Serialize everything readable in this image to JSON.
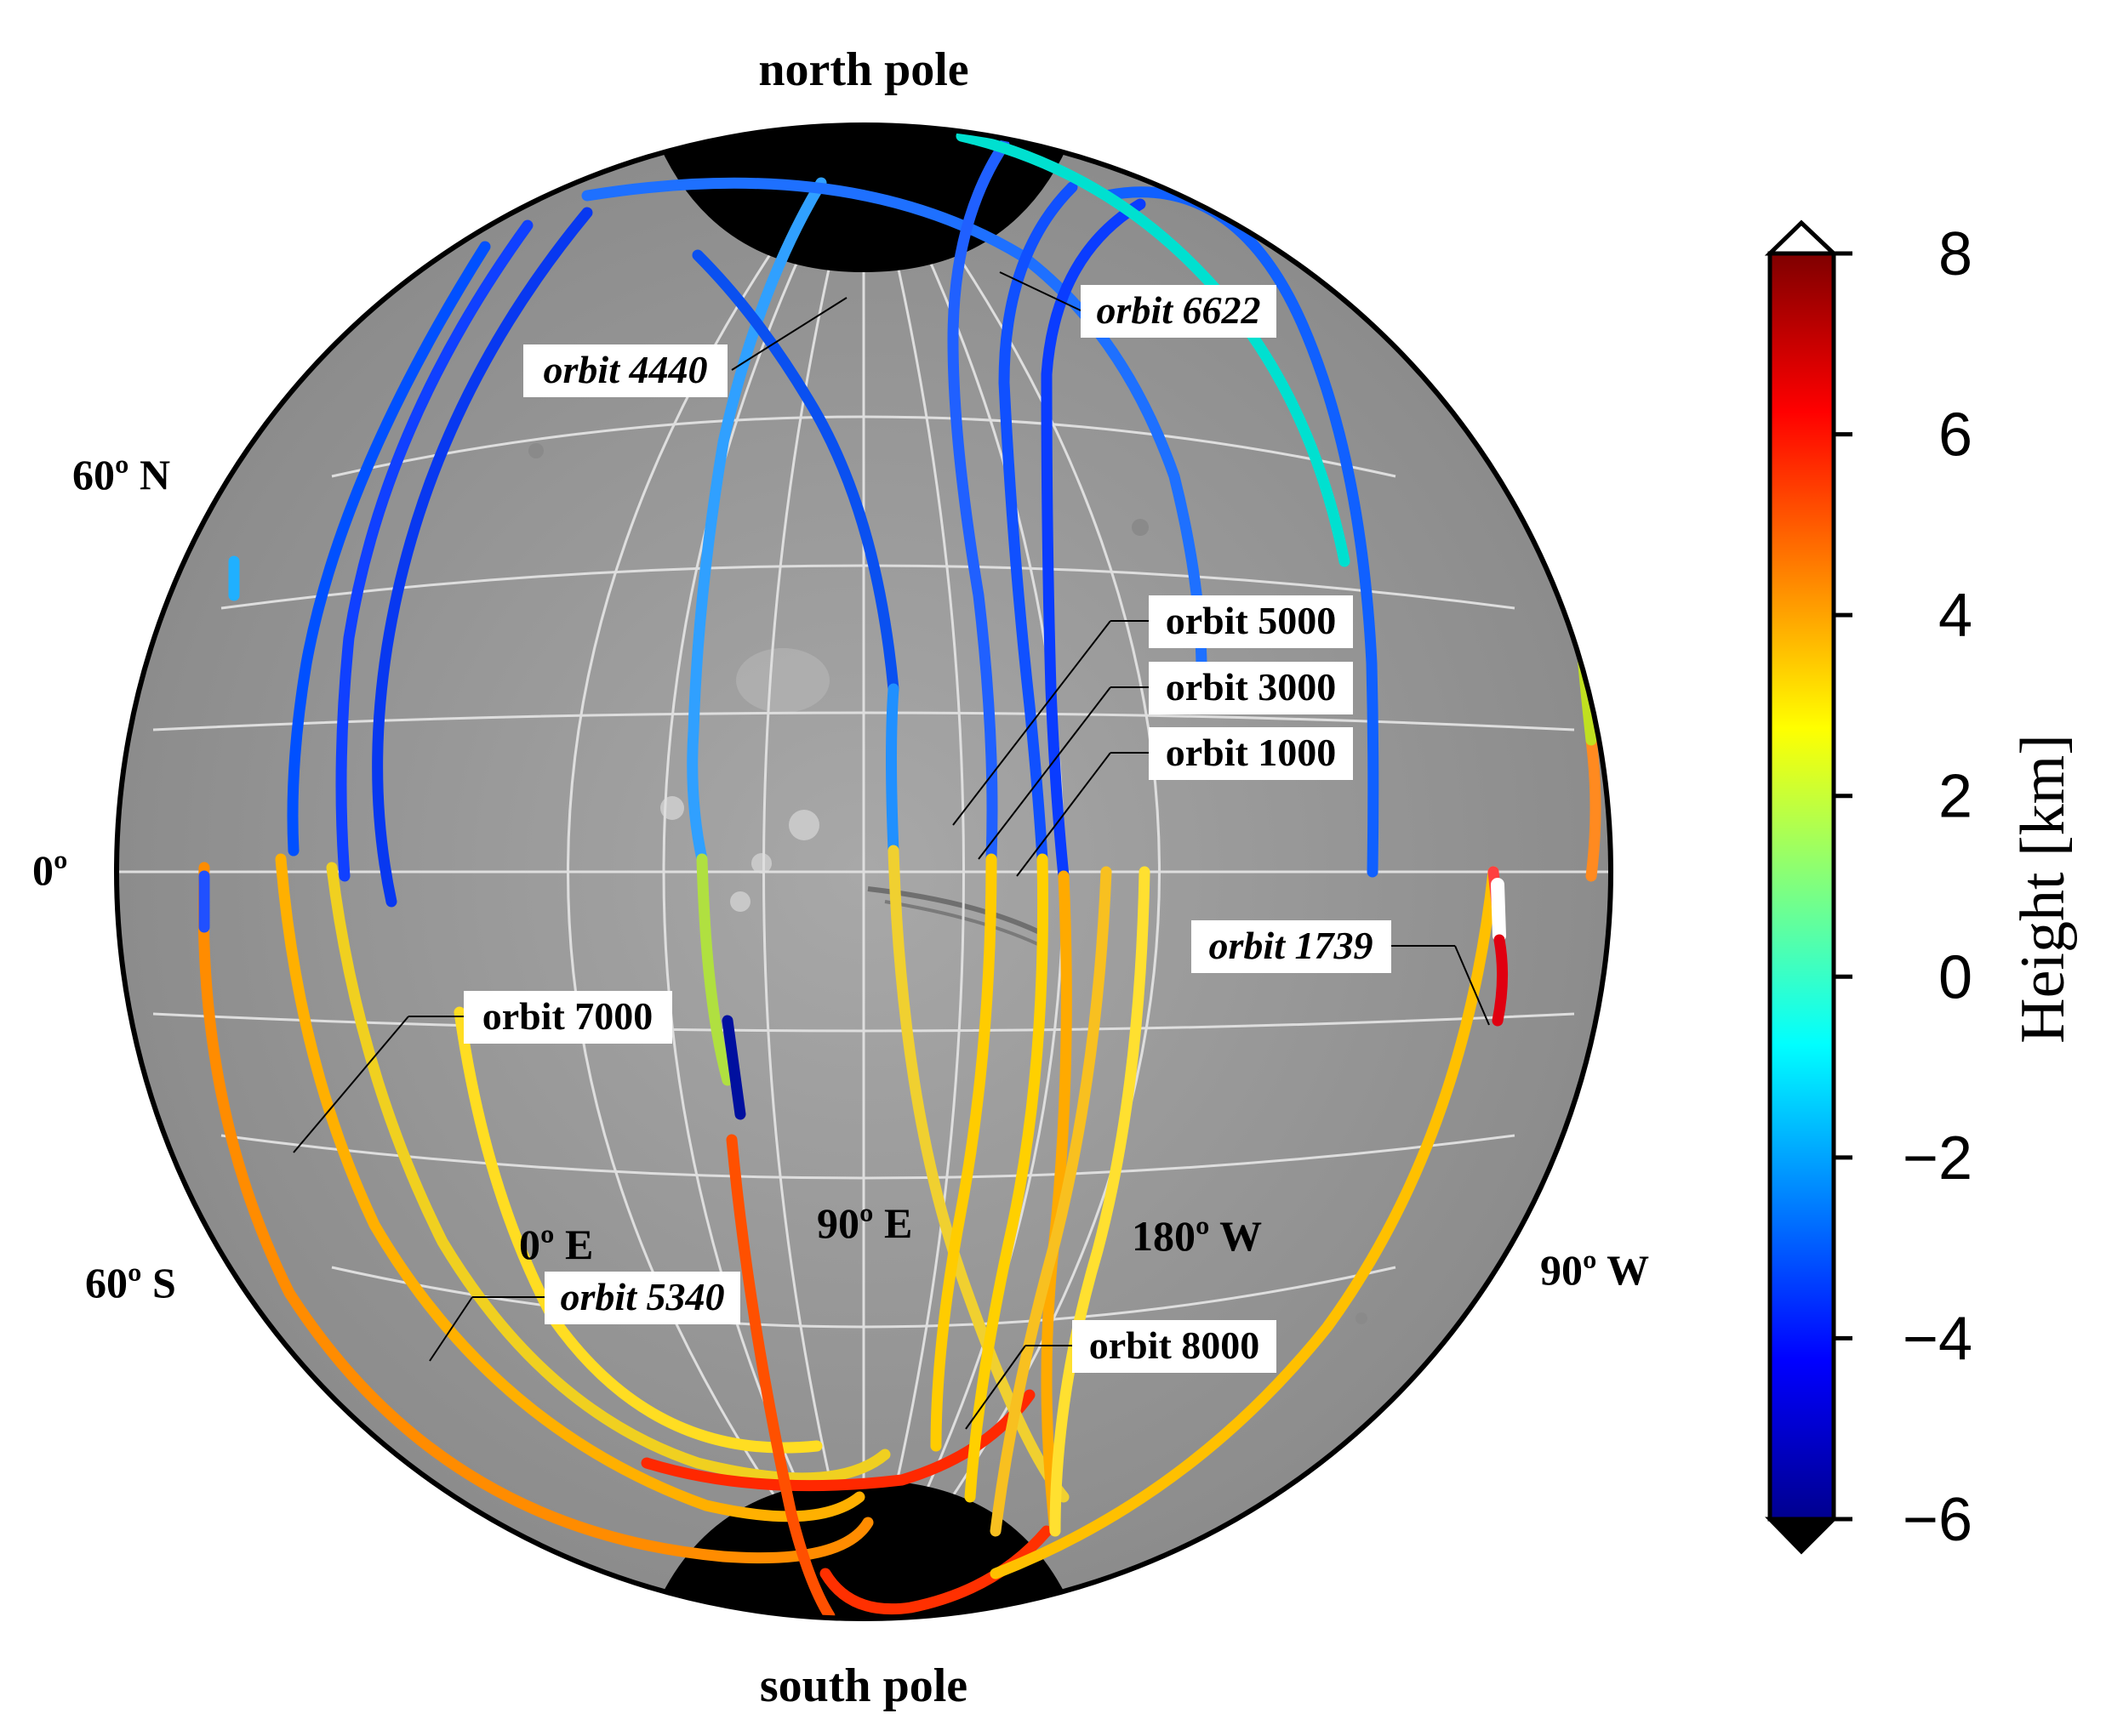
{
  "figure": {
    "top_label": "north pole",
    "bottom_label": "south pole",
    "latitude_labels": [
      "60º N",
      "0º",
      "60º S"
    ],
    "longitude_labels": [
      "0º E",
      "90º E",
      "180º W",
      "90º W"
    ]
  },
  "orbits": [
    {
      "label": "orbit 4440",
      "italic": true
    },
    {
      "label": "orbit 6622",
      "italic": true
    },
    {
      "label": "orbit 5000",
      "italic": false
    },
    {
      "label": "orbit 3000",
      "italic": false
    },
    {
      "label": "orbit 1000",
      "italic": false
    },
    {
      "label": "orbit 1739",
      "italic": true
    },
    {
      "label": "orbit 7000",
      "italic": false
    },
    {
      "label": "orbit 5340",
      "italic": true
    },
    {
      "label": "orbit 8000",
      "italic": false
    }
  ],
  "colorbar": {
    "title": "Height [km]",
    "min": -6,
    "max": 8,
    "ticks": [
      "8",
      "6",
      "4",
      "2",
      "0",
      "−2",
      "−4",
      "−6"
    ],
    "extend": "both",
    "colormap": [
      "#00008f",
      "#0000ff",
      "#007fff",
      "#00ffff",
      "#7fff7f",
      "#ffff00",
      "#ff7f00",
      "#ff0000",
      "#7f0000"
    ]
  },
  "colors": {
    "surface": "#9a9a9a",
    "pole_cap": "#000000",
    "graticule": "#dedede"
  }
}
